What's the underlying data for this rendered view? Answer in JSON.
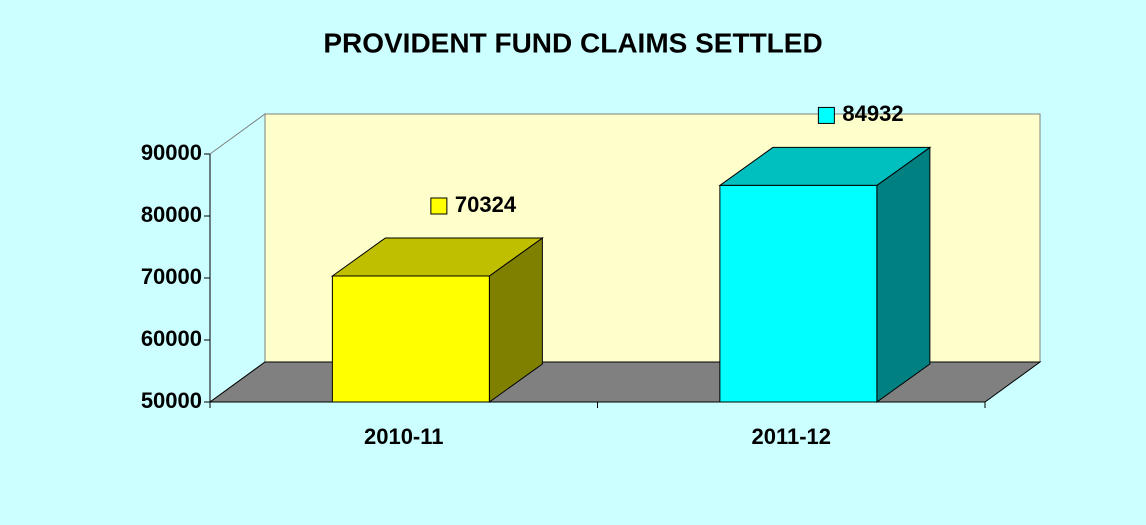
{
  "chart_data": {
    "type": "bar3d",
    "title": "PROVIDENT FUND CLAIMS SETTLED",
    "categories": [
      "2010-11",
      "2011-12"
    ],
    "values": [
      70324,
      84932
    ],
    "colors": [
      "#ffff00",
      "#00ffff"
    ],
    "ylim": [
      50000,
      90000
    ],
    "yticks": [
      50000,
      60000,
      70000,
      80000,
      90000
    ]
  }
}
